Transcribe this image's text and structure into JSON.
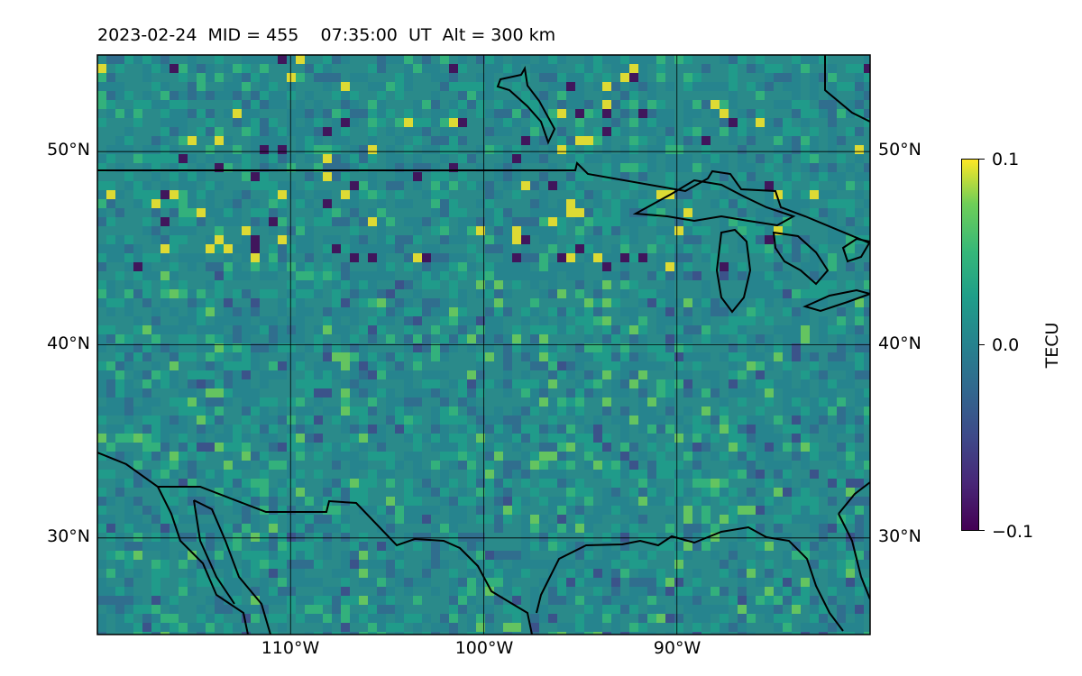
{
  "title": "2023-02-24  MID = 455    07:35:00  UT  Alt = 300 km",
  "map": {
    "projection": "equirectangular",
    "lon_range": [
      -120,
      -80
    ],
    "lat_range": [
      25,
      55
    ],
    "grid": true,
    "features": [
      "coastlines",
      "country-borders",
      "great-lakes"
    ],
    "lat_ticks": [
      {
        "value": 30,
        "label": "30°N"
      },
      {
        "value": 40,
        "label": "40°N"
      },
      {
        "value": 50,
        "label": "50°N"
      }
    ],
    "lon_ticks": [
      {
        "value": -110,
        "label": "110°W"
      },
      {
        "value": -100,
        "label": "100°W"
      },
      {
        "value": -90,
        "label": "90°W"
      }
    ]
  },
  "colorbar": {
    "label": "TECU",
    "colormap": "viridis",
    "range": [
      -0.1,
      0.1
    ],
    "ticks": [
      {
        "value": 0.1,
        "label": "0.1"
      },
      {
        "value": 0.0,
        "label": "0.0"
      },
      {
        "value": -0.1,
        "label": "−0.1"
      }
    ]
  },
  "colors": {
    "viridis_low": "#440154",
    "viridis_mid": "#21918c",
    "viridis_high": "#fde725",
    "background_field": "#2a8a8a"
  }
}
